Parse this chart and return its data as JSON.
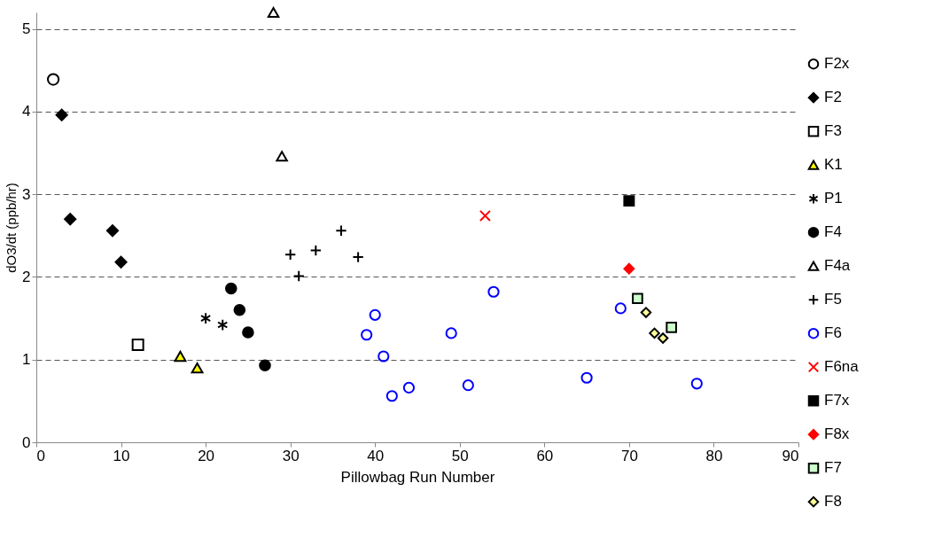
{
  "chart_data": {
    "type": "scatter",
    "xlabel": "Pillowbag Run Number",
    "ylabel": "dO3/dt (ppb/hr)",
    "xlim": [
      0,
      90
    ],
    "xticks": [
      0,
      10,
      20,
      30,
      40,
      50,
      60,
      70,
      80,
      90
    ],
    "ylim": [
      0,
      5.2
    ],
    "yticks": [
      0,
      1,
      2,
      3,
      4,
      5
    ],
    "grid": "y",
    "legend": "right",
    "series": [
      {
        "name": "F2x",
        "color": "#000000",
        "marker": "circle-open",
        "x": [
          2
        ],
        "values": [
          4.39
        ]
      },
      {
        "name": "F2",
        "color": "#000000",
        "marker": "diamond",
        "x": [
          3,
          4,
          9,
          10
        ],
        "values": [
          3.96,
          2.7,
          2.56,
          2.18
        ]
      },
      {
        "name": "F3",
        "color": "#000000",
        "marker": "square-open",
        "x": [
          12
        ],
        "values": [
          1.18
        ]
      },
      {
        "name": "K1",
        "color": "#ffff00",
        "marker": "triangle",
        "x": [
          17,
          19
        ],
        "values": [
          1.04,
          0.9
        ]
      },
      {
        "name": "P1",
        "color": "#000000",
        "x": [
          20,
          22
        ],
        "values": [
          1.5,
          1.42
        ]
      },
      {
        "name": "F4",
        "color": "#000000",
        "marker": "circle",
        "x": [
          23,
          24,
          25,
          27
        ],
        "values": [
          1.86,
          1.6,
          1.33,
          0.93
        ]
      },
      {
        "name": "F4a",
        "color": "#000000",
        "marker": "triangle-open",
        "x": [
          28,
          29
        ],
        "values": [
          5.2,
          3.46
        ]
      },
      {
        "name": "F5",
        "color": "#000000",
        "marker": "cross",
        "x": [
          30,
          31,
          33,
          36,
          38
        ],
        "values": [
          2.27,
          2.01,
          2.32,
          2.56,
          2.24
        ]
      },
      {
        "name": "F6",
        "color": "#0000ff",
        "marker": "circle-open",
        "x": [
          39,
          40,
          41,
          42,
          44,
          49,
          51,
          54,
          65,
          69,
          78
        ],
        "values": [
          1.3,
          1.54,
          1.04,
          0.56,
          0.66,
          1.32,
          0.69,
          1.82,
          0.78,
          1.62,
          0.71
        ]
      },
      {
        "name": "F6na",
        "color": "#ff0000",
        "marker": "x",
        "x": [
          53
        ],
        "values": [
          2.74
        ]
      },
      {
        "name": "F7x",
        "color": "#000000",
        "marker": "square",
        "x": [
          70
        ],
        "values": [
          2.92
        ]
      },
      {
        "name": "F8x",
        "color": "#ff0000",
        "marker": "diamond",
        "x": [
          70
        ],
        "values": [
          2.1
        ]
      },
      {
        "name": "F7",
        "color": "#ccffcc",
        "marker": "square",
        "x": [
          71,
          75
        ],
        "values": [
          1.74,
          1.39
        ]
      },
      {
        "name": "F8",
        "color": "#ffff99",
        "marker": "diamond",
        "x": [
          72,
          73,
          74
        ],
        "values": [
          1.57,
          1.32,
          1.26
        ]
      }
    ]
  }
}
